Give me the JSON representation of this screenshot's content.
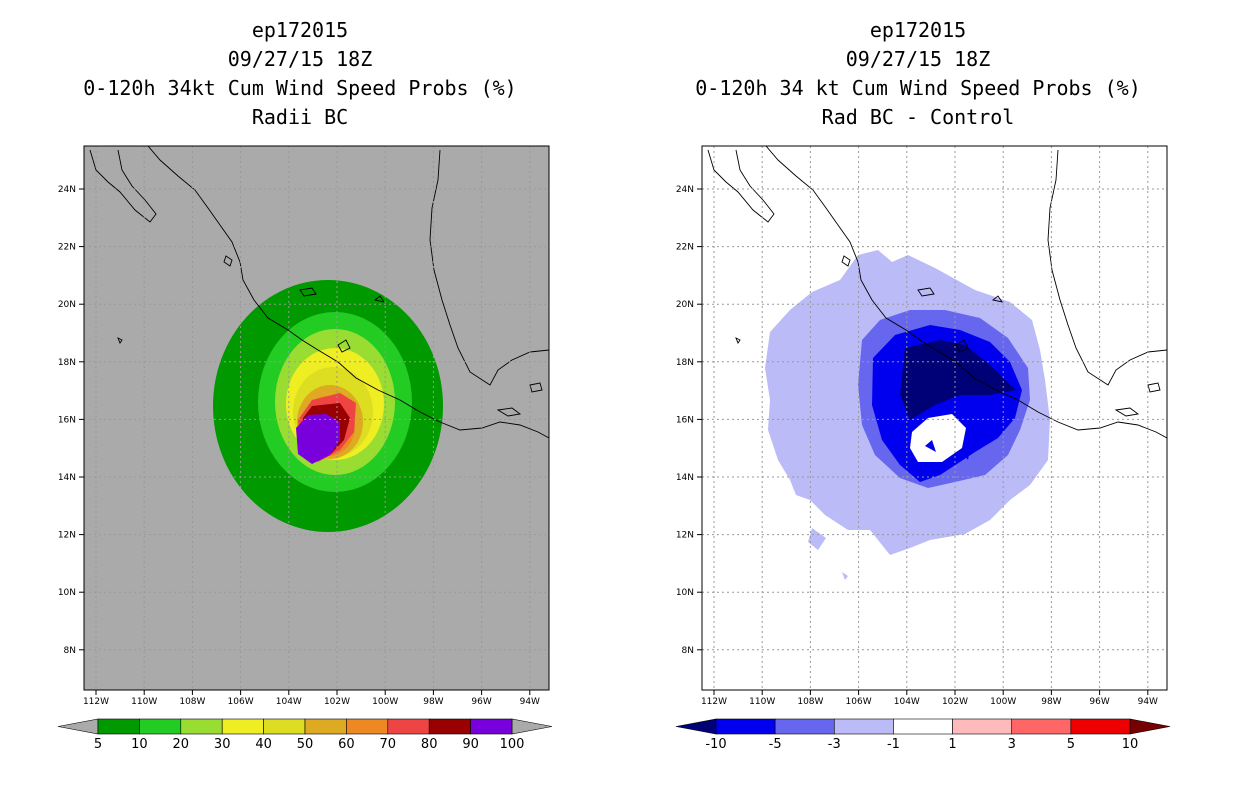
{
  "left_panel": {
    "title_lines": [
      "ep172015",
      "09/27/15 18Z",
      "0-120h 34kt Cum Wind Speed Probs (%)",
      "Radii BC"
    ],
    "colorbar": {
      "labels": [
        "5",
        "10",
        "20",
        "30",
        "40",
        "50",
        "60",
        "70",
        "80",
        "90",
        "100"
      ],
      "colors": [
        "#009900",
        "#22cc22",
        "#99dd33",
        "#eeee22",
        "#dddd22",
        "#ddaa22",
        "#ee8822",
        "#ee4444",
        "#990000",
        "#7700dd"
      ],
      "end_color": "#aaaaaa"
    }
  },
  "right_panel": {
    "title_lines": [
      "ep172015",
      "09/27/15 18Z",
      "0-120h 34 kt Cum Wind Speed Probs (%)",
      "Rad BC - Control"
    ],
    "colorbar": {
      "labels": [
        "-10",
        "-5",
        "-3",
        "-1",
        "1",
        "3",
        "5",
        "10"
      ],
      "colors": [
        "#0000ee",
        "#6666ee",
        "#bbbbf8",
        "#ffffff",
        "#ffbbbb",
        "#ff6666",
        "#ee0000"
      ],
      "low_end_color": "#000077",
      "high_end_color": "#770000"
    }
  },
  "map_axes": {
    "lat_labels": [
      "24N",
      "22N",
      "20N",
      "18N",
      "16N",
      "14N",
      "12N",
      "10N",
      "8N"
    ],
    "lon_labels": [
      "112W",
      "110W",
      "108W",
      "106W",
      "104W",
      "102W",
      "100W",
      "98W",
      "96W",
      "94W"
    ]
  },
  "colors": {
    "land_background": "#aaaaaa",
    "gridline": "#999999",
    "coastline": "#000000"
  }
}
